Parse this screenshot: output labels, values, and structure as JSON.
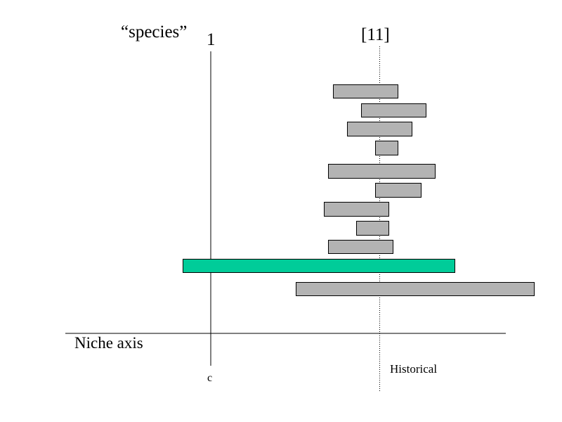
{
  "labels": {
    "species": "“species”",
    "axis_one": "1",
    "axis_eleven": "[11]",
    "niche_axis": "Niche axis",
    "c": "c",
    "historical": "Historical"
  },
  "colors": {
    "bar_fill": "#b3b3b3",
    "highlight_fill": "#00cc99",
    "stroke": "#000000"
  },
  "bars": [
    {
      "kind": "species"
    },
    {
      "kind": "species"
    },
    {
      "kind": "species"
    },
    {
      "kind": "species"
    },
    {
      "kind": "species"
    },
    {
      "kind": "species"
    },
    {
      "kind": "species"
    },
    {
      "kind": "species"
    },
    {
      "kind": "species"
    },
    {
      "kind": "highlight"
    },
    {
      "kind": "species"
    }
  ]
}
